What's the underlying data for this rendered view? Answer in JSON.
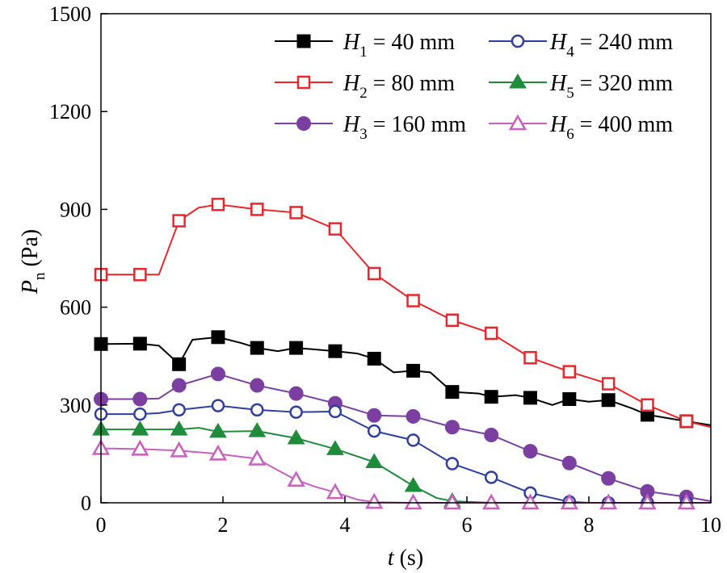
{
  "chart_data": {
    "type": "line",
    "title": "",
    "xlabel": "t (s)",
    "xlabel_var": "t",
    "xlabel_unit": "(s)",
    "ylabel": "Pn (Pa)",
    "ylabel_var": "P",
    "ylabel_sub": "n",
    "ylabel_unit": "(Pa)",
    "xlim": [
      0,
      10
    ],
    "ylim": [
      0,
      1500
    ],
    "xticks": [
      0,
      2,
      4,
      6,
      8,
      10
    ],
    "yticks": [
      0,
      300,
      600,
      900,
      1200,
      1500
    ],
    "legend_position": "top-right",
    "series": [
      {
        "name": "H1 = 40 mm",
        "var": "H",
        "sub": "1",
        "rest": " = 40 mm",
        "color": "#000000",
        "marker": "square-filled",
        "line_x": [
          0,
          0.64,
          0.95,
          1.28,
          1.5,
          1.92,
          2.3,
          2.56,
          2.9,
          3.2,
          3.84,
          4.2,
          4.48,
          4.8,
          5.12,
          5.4,
          5.76,
          6.2,
          6.4,
          6.8,
          7.04,
          7.4,
          7.68,
          8.0,
          8.32,
          8.7,
          8.96,
          9.6,
          10.0
        ],
        "line_y": [
          487,
          488,
          482,
          425,
          500,
          508,
          490,
          475,
          465,
          475,
          465,
          458,
          442,
          400,
          405,
          400,
          340,
          335,
          325,
          330,
          322,
          300,
          318,
          310,
          315,
          290,
          270,
          250,
          238
        ],
        "marker_x": [
          0,
          0.64,
          1.28,
          1.92,
          2.56,
          3.2,
          3.84,
          4.48,
          5.12,
          5.76,
          6.4,
          7.04,
          7.68,
          8.32,
          8.96,
          9.6
        ],
        "marker_y": [
          487,
          488,
          425,
          508,
          475,
          475,
          465,
          442,
          405,
          340,
          325,
          322,
          318,
          315,
          270,
          250
        ]
      },
      {
        "name": "H2 = 80 mm",
        "var": "H",
        "sub": "2",
        "rest": " = 80 mm",
        "color": "#e8262b",
        "marker": "square-open",
        "line_x": [
          0,
          0.64,
          0.95,
          1.28,
          1.6,
          1.92,
          2.56,
          3.2,
          3.84,
          4.48,
          5.12,
          5.76,
          6.4,
          7.04,
          7.68,
          8.32,
          8.96,
          9.6,
          10.0
        ],
        "line_y": [
          700,
          700,
          700,
          865,
          905,
          915,
          900,
          890,
          840,
          703,
          620,
          560,
          520,
          445,
          402,
          365,
          300,
          250,
          232
        ],
        "marker_x": [
          0,
          0.64,
          1.28,
          1.92,
          2.56,
          3.2,
          3.84,
          4.48,
          5.12,
          5.76,
          6.4,
          7.04,
          7.68,
          8.32,
          8.96,
          9.6
        ],
        "marker_y": [
          700,
          700,
          865,
          915,
          900,
          890,
          840,
          703,
          620,
          560,
          520,
          445,
          402,
          365,
          300,
          250
        ]
      },
      {
        "name": "H3 = 160 mm",
        "var": "H",
        "sub": "3",
        "rest": " = 160 mm",
        "color": "#7b3fa1",
        "marker": "circle-filled",
        "line_x": [
          0,
          0.64,
          0.95,
          1.28,
          1.92,
          2.56,
          3.2,
          3.84,
          4.48,
          5.12,
          5.76,
          6.4,
          7.04,
          7.68,
          8.32,
          8.96,
          9.6,
          10.0
        ],
        "line_y": [
          318,
          318,
          320,
          360,
          395,
          360,
          335,
          305,
          268,
          265,
          232,
          208,
          158,
          122,
          75,
          35,
          18,
          5
        ],
        "marker_x": [
          0,
          0.64,
          1.28,
          1.92,
          2.56,
          3.2,
          3.84,
          4.48,
          5.12,
          5.76,
          6.4,
          7.04,
          7.68,
          8.32,
          8.96,
          9.6
        ],
        "marker_y": [
          318,
          318,
          360,
          395,
          360,
          335,
          305,
          268,
          265,
          232,
          208,
          158,
          122,
          75,
          35,
          18
        ]
      },
      {
        "name": "H4 = 240 mm",
        "var": "H",
        "sub": "4",
        "rest": " = 240 mm",
        "color": "#2f3fa0",
        "marker": "circle-open",
        "line_x": [
          0,
          0.64,
          0.95,
          1.28,
          1.92,
          2.56,
          3.2,
          3.84,
          4.48,
          5.12,
          5.76,
          6.4,
          7.04,
          7.68,
          8.0,
          8.32,
          8.96,
          9.6,
          10.0
        ],
        "line_y": [
          272,
          272,
          275,
          285,
          298,
          285,
          278,
          280,
          220,
          192,
          120,
          78,
          30,
          3,
          0,
          0,
          0,
          0,
          0
        ],
        "marker_x": [
          0,
          0.64,
          1.28,
          1.92,
          2.56,
          3.2,
          3.84,
          4.48,
          5.12,
          5.76,
          6.4,
          7.04,
          7.68,
          8.32,
          8.96,
          9.6
        ],
        "marker_y": [
          272,
          272,
          285,
          298,
          285,
          278,
          280,
          220,
          192,
          120,
          78,
          30,
          3,
          0,
          0,
          0
        ]
      },
      {
        "name": "H5 = 320 mm",
        "var": "H",
        "sub": "5",
        "rest": " = 320 mm",
        "color": "#1e8c3a",
        "marker": "triangle-filled",
        "line_x": [
          0,
          0.64,
          1.28,
          1.6,
          1.92,
          2.56,
          3.2,
          3.84,
          4.48,
          5.12,
          5.5,
          5.76,
          6.4,
          7.04,
          7.68,
          8.32,
          8.96,
          9.6,
          10.0
        ],
        "line_y": [
          225,
          225,
          225,
          230,
          218,
          220,
          198,
          165,
          125,
          52,
          15,
          5,
          0,
          0,
          0,
          0,
          0,
          0,
          0
        ],
        "marker_x": [
          0,
          0.64,
          1.28,
          1.92,
          2.56,
          3.2,
          3.84,
          4.48,
          5.12,
          5.76
        ],
        "marker_y": [
          225,
          225,
          225,
          218,
          220,
          198,
          165,
          125,
          52,
          5
        ]
      },
      {
        "name": "H6 = 400 mm",
        "var": "H",
        "sub": "6",
        "rest": " = 400 mm",
        "color": "#c860c0",
        "marker": "triangle-open",
        "line_x": [
          0,
          0.64,
          1.28,
          1.92,
          2.56,
          2.9,
          3.2,
          3.5,
          3.84,
          4.2,
          4.48,
          5.12,
          5.76,
          6.4,
          7.04,
          7.68,
          8.32,
          8.96,
          9.6,
          10.0
        ],
        "line_y": [
          167,
          165,
          160,
          150,
          135,
          100,
          70,
          50,
          32,
          10,
          2,
          0,
          0,
          0,
          0,
          0,
          0,
          0,
          0,
          0
        ],
        "marker_x": [
          0,
          0.64,
          1.28,
          1.92,
          2.56,
          3.2,
          3.84,
          4.48,
          5.12,
          5.76,
          6.4,
          7.04,
          7.68,
          8.32,
          8.96,
          9.6
        ],
        "marker_y": [
          167,
          165,
          160,
          150,
          135,
          70,
          32,
          2,
          0,
          0,
          0,
          0,
          0,
          0,
          0,
          0
        ]
      }
    ]
  }
}
